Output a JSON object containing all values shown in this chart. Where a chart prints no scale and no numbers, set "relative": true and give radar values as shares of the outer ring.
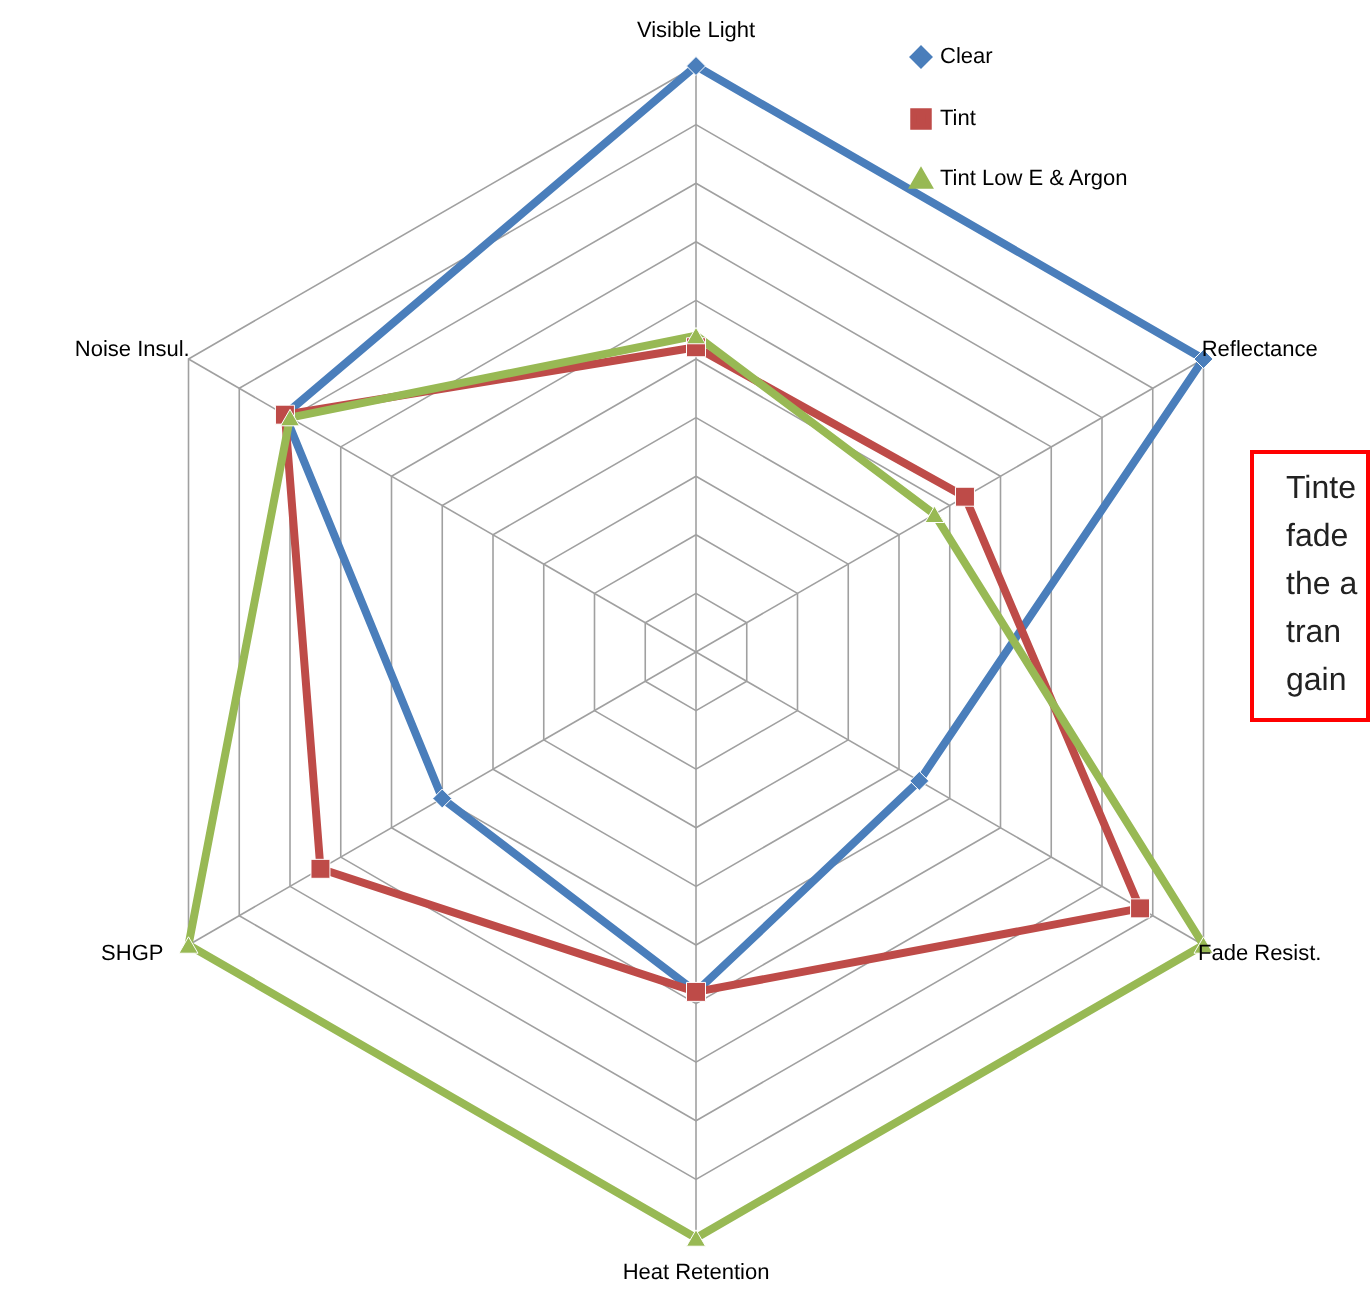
{
  "chart_data": {
    "type": "radar",
    "relative": true,
    "grid": true,
    "legend": "top right",
    "categories": [
      "Visible Light",
      "Reflectance",
      "Fade Resist.",
      "Heat Retention",
      "SHGP",
      "Noise Insul."
    ],
    "series": [
      {
        "name": "Clear",
        "color": "#4a7ebb",
        "marker": "diamond",
        "values": [
          1,
          1,
          0.44,
          0.58,
          0.5,
          0.81
        ]
      },
      {
        "name": "Tint",
        "color": "#be4b48",
        "marker": "square",
        "values": [
          0.52,
          0.53,
          0.875,
          0.58,
          0.74,
          0.81
        ]
      },
      {
        "name": "Tint Low E & Argon",
        "color": "#98b954",
        "marker": "triangle",
        "values": [
          0.54,
          0.47,
          1,
          1,
          1,
          0.8
        ]
      }
    ],
    "annotations": [
      "Tinte\nfade\nthe a\ntran\ngain"
    ]
  }
}
